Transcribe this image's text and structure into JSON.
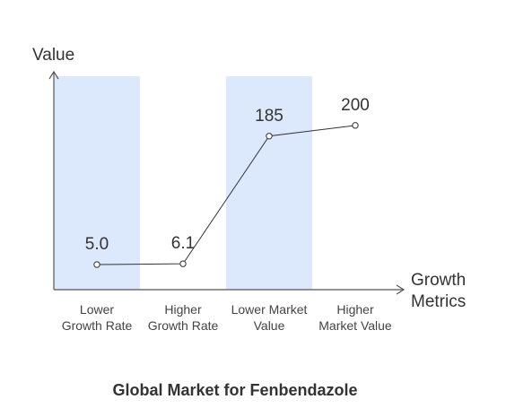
{
  "chart_data": {
    "type": "line",
    "title": "Global Market for Fenbendazole",
    "ylabel": "Value",
    "xlabel_lines": [
      "Growth",
      "Metrics"
    ],
    "categories": [
      [
        "Lower",
        "Growth Rate"
      ],
      [
        "Higher",
        "Growth Rate"
      ],
      [
        "Lower Market",
        "Value"
      ],
      [
        "Higher",
        "Market Value"
      ]
    ],
    "values": [
      5.0,
      6.1,
      185,
      200
    ],
    "value_labels": [
      "5.0",
      "6.1",
      "185",
      "200"
    ],
    "ylim": [
      0,
      240
    ],
    "highlighted_categories": [
      0,
      2
    ],
    "highlight_color": "#dce8fb",
    "line_color": "#333333",
    "axis_color": "#555555"
  }
}
